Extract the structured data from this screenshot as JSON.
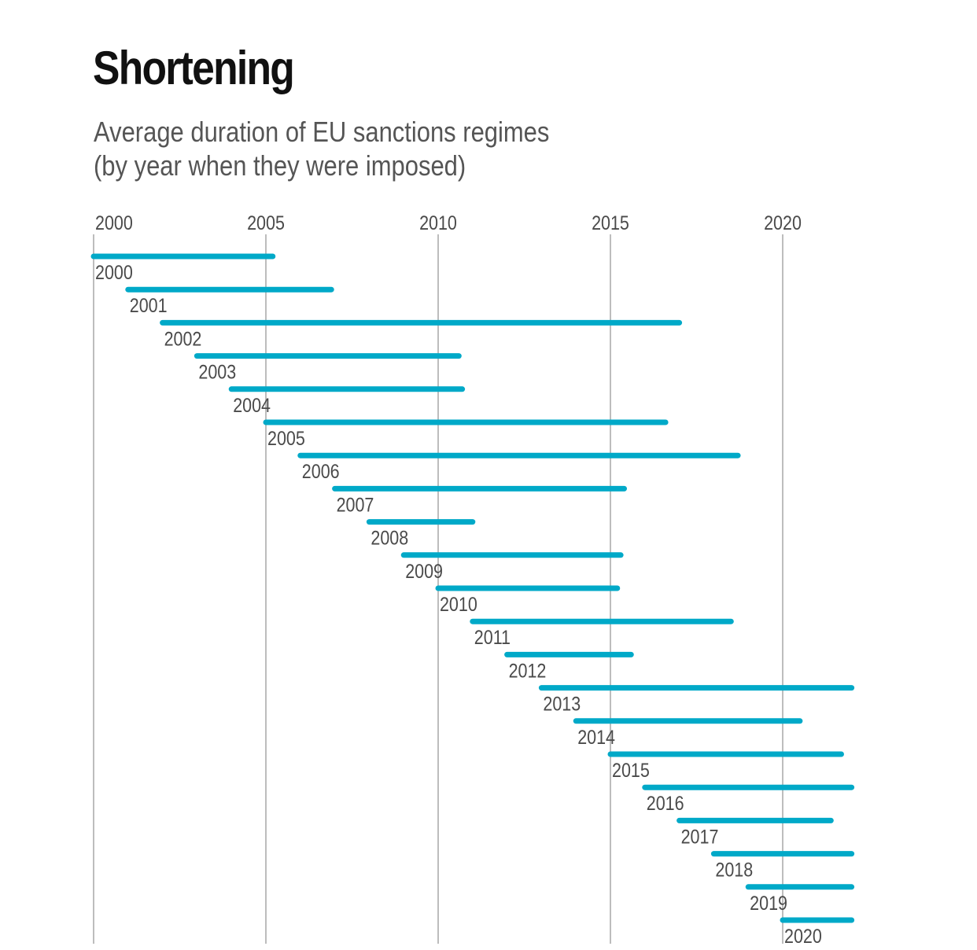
{
  "title": "Shortening",
  "subtitle_line1": "Average duration of EU sanctions regimes",
  "subtitle_line2": "(by year when they were imposed)",
  "colors": {
    "bar": "#00a9c8",
    "grid": "#bdbdbd",
    "text": "#4a4a4a"
  },
  "chart_data": {
    "type": "bar",
    "orientation": "horizontal-range",
    "title": "Shortening",
    "subtitle": "Average duration of EU sanctions regimes (by year when they were imposed)",
    "xlabel": "",
    "ylabel": "",
    "xlim": [
      2000,
      2022
    ],
    "x_ticks": [
      "2000",
      "2005",
      "2010",
      "2015",
      "2020"
    ],
    "grid": "vertical",
    "categories": [
      "2000",
      "2001",
      "2002",
      "2003",
      "2004",
      "2005",
      "2006",
      "2007",
      "2008",
      "2009",
      "2010",
      "2011",
      "2012",
      "2013",
      "2014",
      "2015",
      "2016",
      "2017",
      "2018",
      "2019",
      "2020"
    ],
    "start": [
      2000,
      2001,
      2002,
      2003,
      2004,
      2005,
      2006,
      2007,
      2008,
      2009,
      2010,
      2011,
      2012,
      2013,
      2014,
      2015,
      2016,
      2017,
      2018,
      2019,
      2020
    ],
    "end": [
      2005.2,
      2006.9,
      2017.0,
      2010.6,
      2010.7,
      2016.6,
      2018.7,
      2015.4,
      2011.0,
      2015.3,
      2015.2,
      2018.5,
      2015.6,
      2022.0,
      2020.5,
      2021.7,
      2022.0,
      2021.4,
      2022.0,
      2022.0,
      2022.0
    ]
  }
}
